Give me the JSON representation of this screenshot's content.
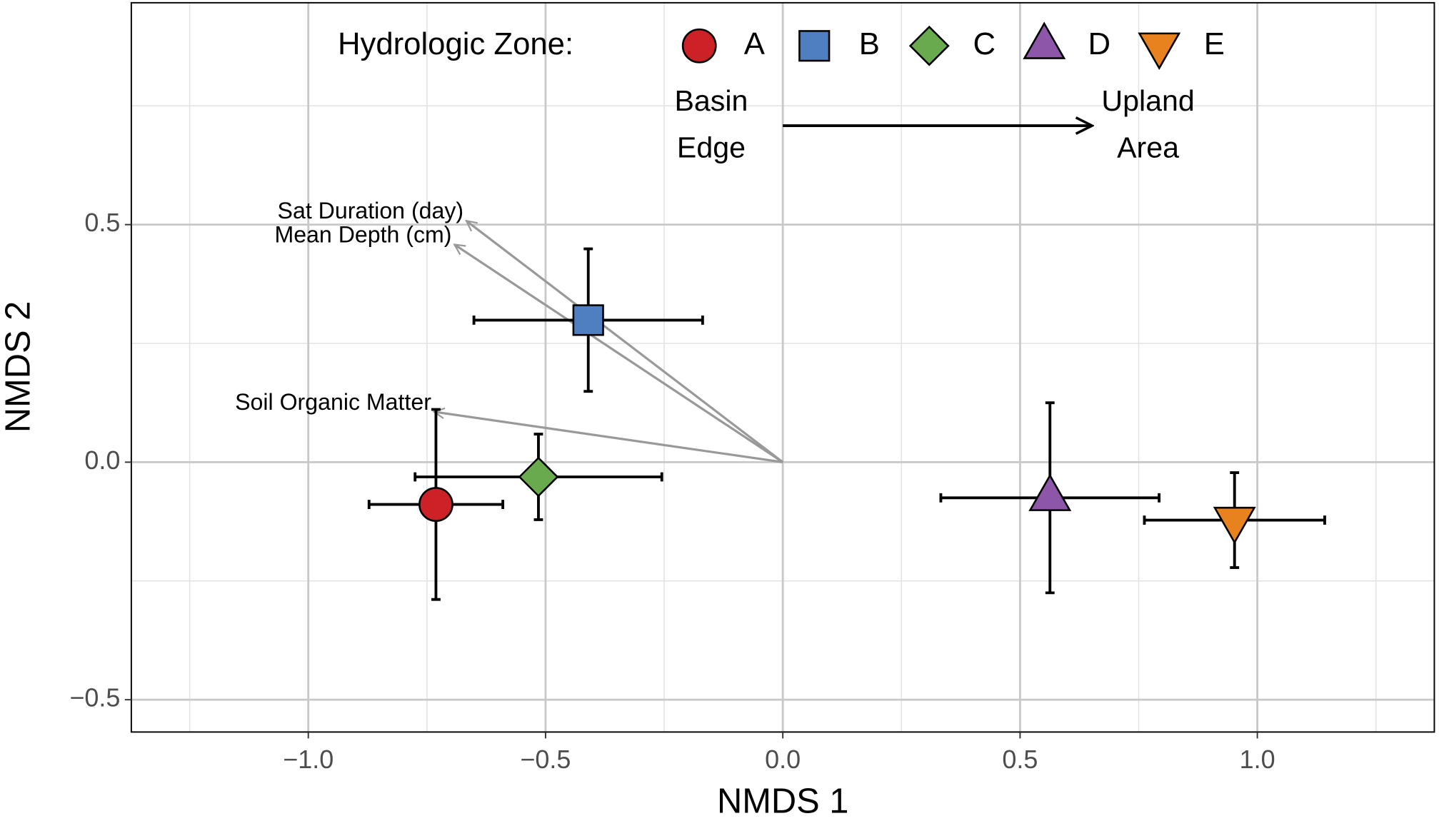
{
  "chart_data": {
    "type": "scatter",
    "xlabel": "NMDS 1",
    "ylabel": "NMDS 2",
    "xlim": [
      -1.373,
      1.373
    ],
    "ylim": [
      -0.568,
      0.967
    ],
    "xticks": [
      {
        "value": -1.0,
        "label": "−1.0"
      },
      {
        "value": -0.5,
        "label": "−0.5"
      },
      {
        "value": 0,
        "label": "0.0"
      },
      {
        "value": 0.5,
        "label": "0.5"
      },
      {
        "value": 1.0,
        "label": "1.0"
      }
    ],
    "yticks": [
      {
        "value": -0.5,
        "label": "−0.5"
      },
      {
        "value": 0,
        "label": "0.0"
      },
      {
        "value": 0.5,
        "label": "0.5"
      }
    ],
    "grid": true,
    "legend_title": "Hydrologic Zone:",
    "legend_position": "top",
    "series": [
      {
        "name": "A",
        "color": "#cc2127",
        "shape": "circle",
        "x": -0.731,
        "y": -0.089,
        "xerr": 0.141,
        "yerr": 0.2
      },
      {
        "name": "B",
        "color": "#4f7fc0",
        "shape": "square",
        "x": -0.41,
        "y": 0.299,
        "xerr": 0.241,
        "yerr": 0.15
      },
      {
        "name": "C",
        "color": "#6aaa4e",
        "shape": "diamond",
        "x": -0.515,
        "y": -0.031,
        "xerr": 0.26,
        "yerr": 0.09
      },
      {
        "name": "D",
        "color": "#8e56a8",
        "shape": "triangle-up",
        "x": 0.563,
        "y": -0.075,
        "xerr": 0.23,
        "yerr": 0.2
      },
      {
        "name": "E",
        "color": "#e8821f",
        "shape": "triangle-down",
        "x": 0.952,
        "y": -0.122,
        "xerr": 0.19,
        "yerr": 0.1
      }
    ],
    "vectors": [
      {
        "label": "Sat Duration (day)",
        "x": -0.667,
        "y": 0.508
      },
      {
        "label": "Mean Depth (cm)",
        "x": -0.692,
        "y": 0.458
      },
      {
        "label": "Soil Organic Matter",
        "x": -0.735,
        "y": 0.106
      }
    ],
    "annotations": [
      {
        "lines": [
          "Basin",
          "Edge"
        ]
      },
      {
        "lines": [
          "Upland",
          "Area"
        ]
      }
    ]
  }
}
